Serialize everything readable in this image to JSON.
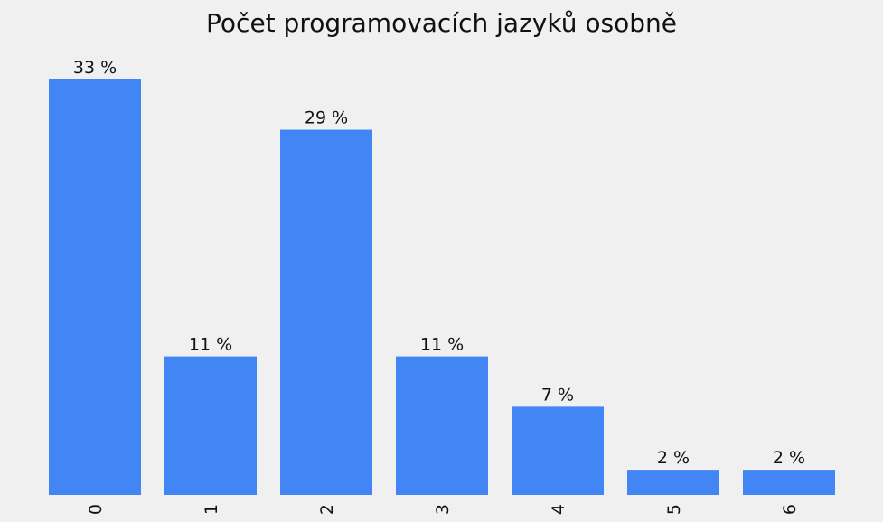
{
  "chart_data": {
    "type": "bar",
    "title": "Počet programovacích jazyků osobně",
    "categories": [
      "0",
      "1",
      "2",
      "3",
      "4",
      "5",
      "6"
    ],
    "values": [
      33,
      11,
      29,
      11,
      7,
      2,
      2
    ],
    "value_labels": [
      "33 %",
      "11 %",
      "29 %",
      "11 %",
      "7 %",
      "2 %",
      "2 %"
    ],
    "xlabel": "",
    "ylabel": "",
    "ylim": [
      0,
      37.5
    ],
    "grid": false,
    "legend": "none",
    "bar_color": "#4285f4",
    "background_color": "#f0f0f0"
  }
}
